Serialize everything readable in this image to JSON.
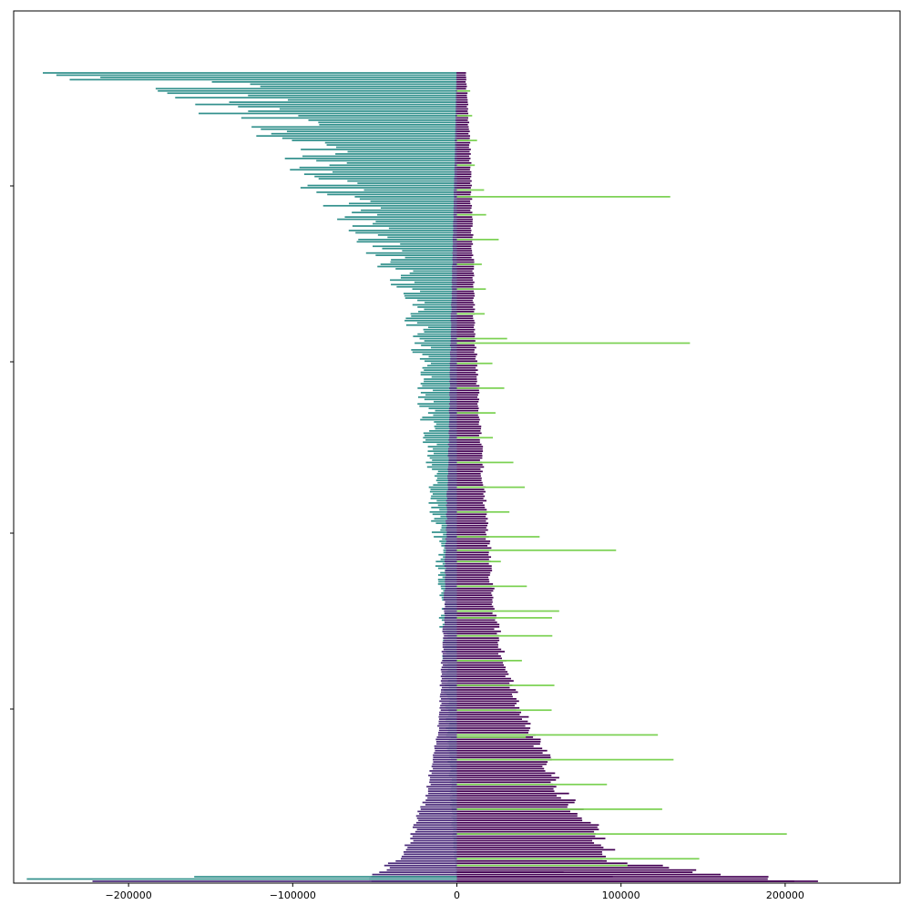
{
  "colors": {
    "background": "#ffffff",
    "axes": "#000000",
    "series": [
      "#440154",
      "#31908c",
      "#7ad151",
      "#482878"
    ]
  },
  "chart_data": {
    "type": "bar",
    "orientation": "horizontal",
    "title": "",
    "xlabel": "",
    "ylabel": "",
    "xlim": [
      -270000,
      270000
    ],
    "ylim": [
      0,
      500
    ],
    "x_ticks": [
      {
        "value": -200000,
        "label": "−200000"
      },
      {
        "value": -100000,
        "label": "−100000"
      },
      {
        "value": 0,
        "label": "0"
      },
      {
        "value": 100000,
        "label": "100000"
      },
      {
        "value": 200000,
        "label": "200000"
      }
    ],
    "y_ticks": [
      100,
      200,
      300,
      400
    ],
    "y_tick_labels_visible": false,
    "grid": false,
    "legend": "none",
    "bar_count": 460,
    "series": [
      {
        "key": "series-a",
        "color": "#440154",
        "description_of_shape": "core funnel, right side",
        "envelope": [
          [
            0,
            5800
          ],
          [
            20,
            7500
          ],
          [
            40,
            9000
          ],
          [
            60,
            9500
          ],
          [
            80,
            10500
          ],
          [
            100,
            11000
          ],
          [
            120,
            12000
          ],
          [
            140,
            14000
          ],
          [
            160,
            15500
          ],
          [
            180,
            17000
          ],
          [
            200,
            20000
          ],
          [
            220,
            22000
          ],
          [
            240,
            25000
          ],
          [
            260,
            30000
          ],
          [
            280,
            40000
          ],
          [
            300,
            55000
          ],
          [
            320,
            70000
          ],
          [
            340,
            95000
          ],
          [
            350,
            100000
          ],
          [
            359,
            220000
          ]
        ]
      },
      {
        "key": "series-b",
        "color": "#31908c",
        "envelope": [
          [
            0,
            -500
          ],
          [
            20,
            -2500
          ],
          [
            40,
            -4200
          ],
          [
            60,
            -5500
          ],
          [
            80,
            -6500
          ],
          [
            100,
            -7800
          ],
          [
            120,
            -9000
          ],
          [
            140,
            -10500
          ],
          [
            160,
            -12500
          ],
          [
            180,
            -13500
          ],
          [
            200,
            -16000
          ],
          [
            220,
            -19000
          ],
          [
            240,
            -20000
          ],
          [
            260,
            -24000
          ],
          [
            280,
            -25000
          ],
          [
            300,
            -29000
          ],
          [
            320,
            -34000
          ],
          [
            340,
            -48000
          ],
          [
            360,
            -65000
          ],
          [
            380,
            -90000
          ],
          [
            400,
            -110000
          ],
          [
            420,
            -140000
          ],
          [
            430,
            -170000
          ],
          [
            440,
            -200000
          ],
          [
            450,
            -260000
          ]
        ]
      },
      {
        "key": "series-c",
        "color": "#7ad151",
        "spikes": [
          [
            55,
            130000
          ],
          [
            120,
            142000
          ],
          [
            212,
            97000
          ],
          [
            242,
            58000
          ],
          [
            295,
            42000
          ],
          [
            352,
            104000
          ],
          [
            374,
            33000
          ]
        ]
      },
      {
        "key": "series-d",
        "color": "#482878",
        "envelope": [
          [
            0,
            -300
          ],
          [
            40,
            -1500
          ],
          [
            80,
            -2800
          ],
          [
            120,
            -4200
          ],
          [
            160,
            -5200
          ],
          [
            200,
            -7000
          ],
          [
            240,
            -8500
          ],
          [
            280,
            -11000
          ],
          [
            300,
            -14000
          ],
          [
            320,
            -20000
          ],
          [
            340,
            -30000
          ],
          [
            350,
            -40000
          ],
          [
            359,
            -60000
          ]
        ]
      }
    ]
  }
}
